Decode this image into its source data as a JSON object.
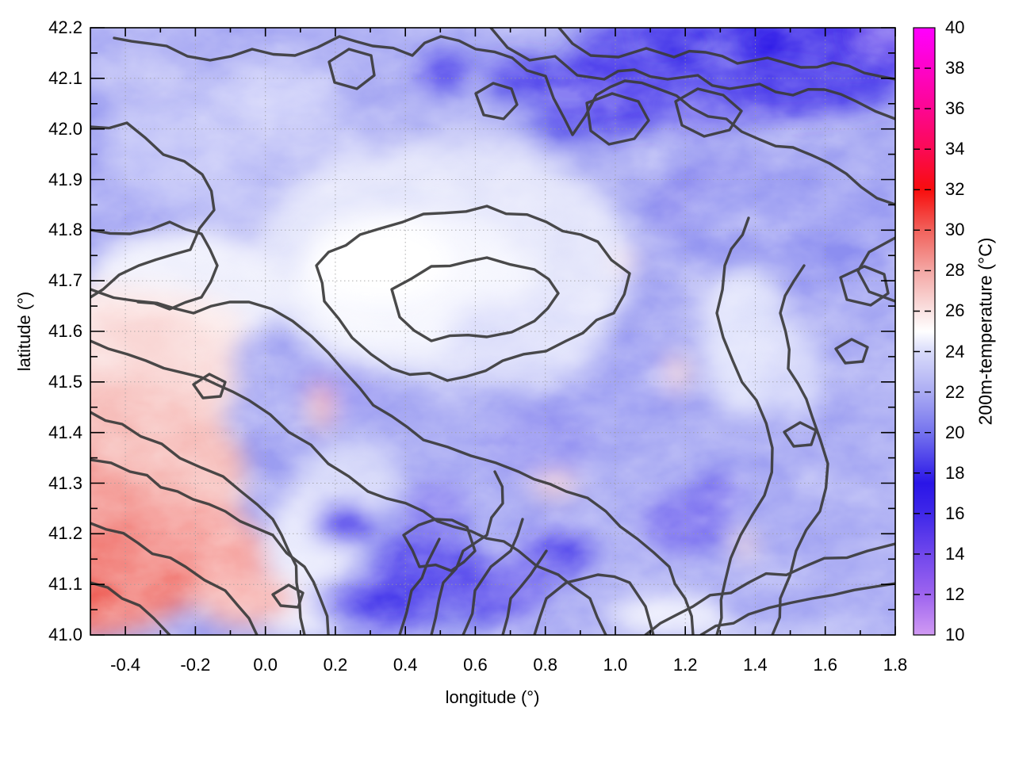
{
  "figure": {
    "background": "#ffffff",
    "xaxis": {
      "label": "longitude (°)",
      "range": [
        -0.5,
        1.8
      ],
      "tick_labels": [
        "-0.4",
        "-0.2",
        "0.0",
        "0.2",
        "0.4",
        "0.6",
        "0.8",
        "1.0",
        "1.2",
        "1.4",
        "1.6",
        "1.8"
      ],
      "major_step": 0.2,
      "minor_step": 0.1
    },
    "yaxis": {
      "label": "latitude (°)",
      "range": [
        41.0,
        42.2
      ],
      "tick_labels": [
        "41.0",
        "41.1",
        "41.2",
        "41.3",
        "41.4",
        "41.5",
        "41.6",
        "41.7",
        "41.8",
        "41.9",
        "42.0",
        "42.1",
        "42.2"
      ],
      "major_step": 0.1,
      "minor_step": 0.05
    },
    "colorbar": {
      "label": "200m-temperature (°C)",
      "range": [
        10,
        40
      ],
      "tick_labels": [
        "10",
        "12",
        "14",
        "16",
        "18",
        "20",
        "22",
        "24",
        "26",
        "28",
        "30",
        "32",
        "34",
        "36",
        "38",
        "40"
      ],
      "palette": [
        {
          "value": 10,
          "color": "#d09af3"
        },
        {
          "value": 12,
          "color": "#9d64ef"
        },
        {
          "value": 14,
          "color": "#7047ec"
        },
        {
          "value": 16,
          "color": "#3f28e9"
        },
        {
          "value": 17.5,
          "color": "#2a15e7"
        },
        {
          "value": 20,
          "color": "#7573ee"
        },
        {
          "value": 22,
          "color": "#abacf3"
        },
        {
          "value": 24,
          "color": "#d9dbfa"
        },
        {
          "value": 25,
          "color": "#ffffff"
        },
        {
          "value": 26,
          "color": "#fae2e2"
        },
        {
          "value": 28,
          "color": "#f4a7a4"
        },
        {
          "value": 30,
          "color": "#f1615b"
        },
        {
          "value": 32,
          "color": "#f80d0d"
        },
        {
          "value": 34,
          "color": "#fb0a55"
        },
        {
          "value": 36,
          "color": "#fd0692"
        },
        {
          "value": 38,
          "color": "#fe03c9"
        },
        {
          "value": 40,
          "color": "#ff00ff"
        }
      ]
    },
    "grid": {
      "visible": true,
      "style": "dotted",
      "color": "#9a9a9a"
    },
    "contours": {
      "color": "#3b3b3b",
      "width": 3.4,
      "labels": "none"
    }
  },
  "chart_data": {
    "type": "heatmap",
    "title": "",
    "xlabel": "longitude (°)",
    "ylabel": "latitude (°)",
    "zlabel": "200m-temperature (°C)",
    "x_range": [
      -0.5,
      1.8
    ],
    "y_range": [
      41.0,
      42.2
    ],
    "z_range": [
      10,
      40
    ],
    "overlay": "unlabeled black contour lines of the temperature field",
    "lon": [
      -0.4,
      -0.2,
      0.0,
      0.2,
      0.4,
      0.6,
      0.8,
      1.0,
      1.2,
      1.4,
      1.6,
      1.8
    ],
    "lat_order": "descending",
    "lat": [
      42.2,
      42.1,
      42.0,
      41.9,
      41.8,
      41.7,
      41.6,
      41.5,
      41.4,
      41.3,
      41.2,
      41.1,
      41.0
    ],
    "values": [
      [
        21.5,
        21.5,
        21.0,
        21.0,
        20.5,
        19.0,
        18.0,
        17.5,
        17.0,
        17.0,
        16.5,
        16.0
      ],
      [
        21.5,
        22.0,
        21.5,
        21.0,
        21.0,
        20.0,
        17.5,
        18.5,
        17.5,
        17.0,
        17.0,
        17.5
      ],
      [
        22.0,
        22.0,
        21.5,
        21.5,
        21.0,
        20.5,
        18.5,
        17.5,
        19.5,
        20.0,
        20.0,
        19.5
      ],
      [
        22.0,
        22.5,
        22.0,
        22.0,
        22.0,
        21.5,
        20.5,
        20.0,
        20.5,
        20.5,
        20.5,
        20.5
      ],
      [
        21.5,
        22.5,
        22.5,
        23.0,
        23.0,
        22.5,
        22.0,
        21.5,
        21.0,
        21.0,
        21.0,
        21.0
      ],
      [
        22.5,
        23.0,
        23.0,
        23.5,
        24.0,
        24.0,
        23.5,
        22.0,
        21.0,
        21.0,
        21.5,
        21.0
      ],
      [
        25.0,
        24.0,
        23.0,
        23.5,
        24.0,
        24.5,
        24.0,
        22.5,
        21.5,
        21.0,
        21.0,
        21.5
      ],
      [
        26.5,
        25.5,
        23.5,
        23.0,
        23.5,
        24.0,
        23.5,
        23.0,
        21.5,
        21.0,
        21.5,
        21.5
      ],
      [
        26.0,
        26.0,
        24.5,
        23.0,
        22.0,
        23.5,
        24.0,
        23.5,
        22.0,
        21.5,
        21.5,
        21.5
      ],
      [
        26.5,
        26.0,
        25.0,
        23.0,
        21.5,
        22.5,
        23.5,
        22.0,
        20.5,
        21.0,
        21.5,
        21.5
      ],
      [
        27.5,
        26.5,
        26.0,
        24.0,
        21.0,
        20.5,
        21.5,
        20.0,
        20.5,
        21.0,
        21.5,
        21.5
      ],
      [
        29.0,
        28.5,
        27.0,
        24.5,
        20.0,
        19.0,
        20.5,
        19.5,
        21.0,
        21.5,
        21.5,
        21.5
      ],
      [
        28.5,
        28.5,
        27.0,
        24.5,
        19.5,
        19.0,
        18.5,
        20.0,
        21.5,
        22.0,
        22.0,
        22.0
      ]
    ],
    "regions_summary": [
      "warm red area (27-30 °C) in the lower-left corner",
      "near-white plateau (24-25 °C) in the centre",
      "cold dark-blue band (16-18 °C) along the top-right edge",
      "cold blue pockets (18-19 °C) near the bottom centre",
      "uniform periwinkle (20-22 °C) over the eastern half"
    ]
  }
}
